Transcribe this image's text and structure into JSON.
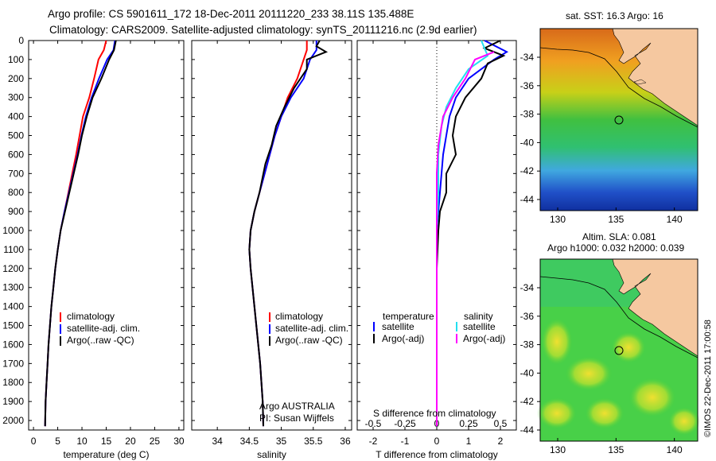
{
  "title_line1": "Argo profile: CS 5901611_172 18-Dec-2011 20111220_233 38.11S 135.488E",
  "title_line2": "Climatology: CARS2009. Satellite-adjusted climatology: synTS_20111216.nc (2.9d earlier)",
  "watermark": "©IMOS 22-Dec-2011 17:00:58",
  "colors": {
    "climatology": "#ff0000",
    "satellite": "#0000ff",
    "argo": "#000000",
    "sal_satellite": "#22e0f0",
    "sal_argo": "#ff00ff",
    "land": "#f5c8a0"
  },
  "depth_ticks": [
    "0",
    "100",
    "200",
    "300",
    "400",
    "500",
    "600",
    "700",
    "800",
    "900",
    "1000",
    "1100",
    "1200",
    "1300",
    "1400",
    "1500",
    "1600",
    "1700",
    "1800",
    "1900",
    "2000"
  ],
  "legends": {
    "climatology": "climatology",
    "satellite_adj": "satellite-adj. clim.",
    "argo_raw": "Argo(..raw -QC)",
    "temperature": "temperature",
    "salinity": "salinity",
    "satellite": "satellite",
    "argo_adj": "Argo(-adj)"
  },
  "annot": {
    "argo": "Argo AUSTRALIA",
    "pi": "PI: Susan Wijffels"
  },
  "map_sst": {
    "title": "sat. SST: 16.3  Argo: 16",
    "yticks": [
      "-34",
      "-36",
      "-38",
      "-40",
      "-42",
      "-44"
    ],
    "xticks": [
      "130",
      "135",
      "140"
    ]
  },
  "map_sla": {
    "title1": "Altim. SLA: 0.081",
    "title2": "Argo h1000: 0.032  h2000: 0.039",
    "yticks": [
      "-34",
      "-36",
      "-38",
      "-40",
      "-42",
      "-44"
    ],
    "xticks": [
      "130",
      "135",
      "140"
    ]
  },
  "chart_data": [
    {
      "type": "line",
      "xlabel": "temperature (deg C)",
      "ylabel": "",
      "xlim": [
        -1,
        31
      ],
      "ylim": [
        2050,
        0
      ],
      "xticks": [
        "0",
        "5",
        "10",
        "15",
        "20",
        "25",
        "30"
      ],
      "series": [
        {
          "name": "climatology",
          "points": [
            [
              15.0,
              0
            ],
            [
              14.5,
              50
            ],
            [
              13.4,
              100
            ],
            [
              12.5,
              200
            ],
            [
              11.5,
              300
            ],
            [
              10.2,
              400
            ],
            [
              9.5,
              500
            ],
            [
              8.8,
              600
            ],
            [
              8.0,
              700
            ],
            [
              7.2,
              800
            ],
            [
              6.4,
              900
            ],
            [
              5.6,
              1000
            ],
            [
              5.0,
              1100
            ],
            [
              4.5,
              1200
            ],
            [
              4.1,
              1300
            ],
            [
              3.7,
              1400
            ],
            [
              3.4,
              1500
            ],
            [
              3.1,
              1600
            ],
            [
              2.9,
              1700
            ],
            [
              2.7,
              1800
            ],
            [
              2.5,
              1900
            ],
            [
              2.4,
              2030
            ]
          ]
        },
        {
          "name": "satellite-adj. clim.",
          "points": [
            [
              16.8,
              0
            ],
            [
              16.5,
              50
            ],
            [
              15.2,
              100
            ],
            [
              13.5,
              200
            ],
            [
              12.0,
              300
            ],
            [
              10.8,
              400
            ],
            [
              9.9,
              500
            ],
            [
              9.1,
              600
            ],
            [
              8.2,
              700
            ],
            [
              7.3,
              800
            ],
            [
              6.4,
              900
            ],
            [
              5.6,
              1000
            ],
            [
              5.0,
              1100
            ],
            [
              4.5,
              1200
            ],
            [
              4.1,
              1300
            ],
            [
              3.7,
              1400
            ],
            [
              3.4,
              1500
            ],
            [
              3.1,
              1600
            ],
            [
              2.9,
              1700
            ],
            [
              2.7,
              1800
            ],
            [
              2.5,
              1900
            ],
            [
              2.4,
              2030
            ]
          ]
        },
        {
          "name": "Argo(..raw -QC)",
          "points": [
            [
              17.0,
              0
            ],
            [
              16.6,
              50
            ],
            [
              15.6,
              100
            ],
            [
              14.0,
              200
            ],
            [
              12.2,
              300
            ],
            [
              11.0,
              400
            ],
            [
              10.0,
              500
            ],
            [
              9.2,
              600
            ],
            [
              8.3,
              700
            ],
            [
              7.4,
              800
            ],
            [
              6.5,
              900
            ],
            [
              5.6,
              1000
            ],
            [
              5.0,
              1100
            ],
            [
              4.5,
              1200
            ],
            [
              4.1,
              1300
            ],
            [
              3.7,
              1400
            ],
            [
              3.4,
              1500
            ],
            [
              3.1,
              1600
            ],
            [
              2.9,
              1700
            ],
            [
              2.7,
              1800
            ],
            [
              2.5,
              1900
            ],
            [
              2.4,
              2030
            ]
          ]
        }
      ]
    },
    {
      "type": "line",
      "xlabel": "salinity",
      "ylabel": "",
      "xlim": [
        33.6,
        36.1
      ],
      "ylim": [
        2050,
        0
      ],
      "xticks": [
        "34",
        "34.5",
        "35",
        "35.5",
        "36"
      ],
      "series": [
        {
          "name": "climatology",
          "points": [
            [
              35.4,
              0
            ],
            [
              35.4,
              50
            ],
            [
              35.35,
              100
            ],
            [
              35.25,
              200
            ],
            [
              35.1,
              300
            ],
            [
              35.0,
              400
            ],
            [
              34.9,
              500
            ],
            [
              34.82,
              600
            ],
            [
              34.74,
              700
            ],
            [
              34.66,
              800
            ],
            [
              34.58,
              900
            ],
            [
              34.52,
              1000
            ],
            [
              34.5,
              1100
            ],
            [
              34.52,
              1200
            ],
            [
              34.55,
              1300
            ],
            [
              34.58,
              1400
            ],
            [
              34.61,
              1500
            ],
            [
              34.64,
              1600
            ],
            [
              34.67,
              1700
            ],
            [
              34.69,
              1800
            ],
            [
              34.71,
              1900
            ],
            [
              34.72,
              2030
            ]
          ]
        },
        {
          "name": "satellite-adj. clim.",
          "points": [
            [
              35.55,
              0
            ],
            [
              35.55,
              50
            ],
            [
              35.45,
              100
            ],
            [
              35.35,
              200
            ],
            [
              35.15,
              300
            ],
            [
              35.0,
              400
            ],
            [
              34.9,
              500
            ],
            [
              34.82,
              600
            ],
            [
              34.74,
              700
            ],
            [
              34.66,
              800
            ],
            [
              34.58,
              900
            ],
            [
              34.52,
              1000
            ],
            [
              34.5,
              1100
            ],
            [
              34.52,
              1200
            ],
            [
              34.55,
              1300
            ],
            [
              34.58,
              1400
            ],
            [
              34.61,
              1500
            ],
            [
              34.64,
              1600
            ],
            [
              34.67,
              1700
            ],
            [
              34.69,
              1800
            ],
            [
              34.71,
              1900
            ],
            [
              34.72,
              2030
            ]
          ]
        },
        {
          "name": "Argo(..raw -QC)",
          "points": [
            [
              35.6,
              0
            ],
            [
              35.55,
              30
            ],
            [
              35.7,
              60
            ],
            [
              35.4,
              100
            ],
            [
              35.4,
              150
            ],
            [
              35.2,
              250
            ],
            [
              35.05,
              350
            ],
            [
              34.92,
              450
            ],
            [
              34.85,
              550
            ],
            [
              34.75,
              650
            ],
            [
              34.66,
              800
            ],
            [
              34.58,
              900
            ],
            [
              34.52,
              1000
            ],
            [
              34.5,
              1100
            ],
            [
              34.52,
              1200
            ],
            [
              34.55,
              1300
            ],
            [
              34.58,
              1400
            ],
            [
              34.61,
              1500
            ],
            [
              34.64,
              1600
            ],
            [
              34.67,
              1700
            ],
            [
              34.69,
              1800
            ],
            [
              34.71,
              1900
            ],
            [
              34.72,
              2030
            ]
          ]
        }
      ]
    },
    {
      "type": "line",
      "xlabel": "T difference from climatology",
      "xlabel_top": "S difference from climatology",
      "xlim": [
        -2.5,
        2.5
      ],
      "ylim": [
        2050,
        0
      ],
      "xticks": [
        "-2",
        "-1",
        "0",
        "1",
        "2"
      ],
      "xticks_top": [
        "-0.5",
        "-0.25",
        "0",
        "0.25",
        "0.5"
      ],
      "series": [
        {
          "name": "temperature satellite",
          "points": [
            [
              1.5,
              0
            ],
            [
              2.2,
              60
            ],
            [
              1.8,
              100
            ],
            [
              1.0,
              200
            ],
            [
              0.6,
              300
            ],
            [
              0.4,
              400
            ],
            [
              0.3,
              500
            ],
            [
              0.2,
              600
            ],
            [
              0.15,
              700
            ],
            [
              0.1,
              800
            ],
            [
              0.05,
              900
            ],
            [
              0.0,
              1000
            ],
            [
              0.0,
              1500
            ],
            [
              0.0,
              2030
            ]
          ]
        },
        {
          "name": "temperature Argo(-adj)",
          "points": [
            [
              2.0,
              0
            ],
            [
              1.5,
              40
            ],
            [
              2.1,
              80
            ],
            [
              1.6,
              120
            ],
            [
              1.4,
              200
            ],
            [
              0.9,
              300
            ],
            [
              0.6,
              400
            ],
            [
              0.5,
              500
            ],
            [
              0.6,
              600
            ],
            [
              0.3,
              700
            ],
            [
              0.3,
              800
            ],
            [
              0.1,
              900
            ],
            [
              0.05,
              1000
            ],
            [
              0.0,
              1200
            ],
            [
              0.0,
              2030
            ]
          ]
        },
        {
          "name": "salinity satellite",
          "points": [
            [
              1.4,
              0
            ],
            [
              1.6,
              80
            ],
            [
              1.0,
              150
            ],
            [
              0.6,
              250
            ],
            [
              0.3,
              350
            ],
            [
              0.15,
              450
            ],
            [
              0.05,
              600
            ],
            [
              0.05,
              800
            ],
            [
              0.0,
              1000
            ],
            [
              0.0,
              1500
            ],
            [
              0.0,
              2030
            ]
          ]
        },
        {
          "name": "salinity Argo(-adj)",
          "points": [
            [
              1.8,
              60
            ],
            [
              1.2,
              100
            ],
            [
              0.9,
              200
            ],
            [
              0.5,
              300
            ],
            [
              0.2,
              400
            ],
            [
              0.05,
              550
            ],
            [
              0.0,
              700
            ],
            [
              0.0,
              2030
            ]
          ]
        }
      ]
    }
  ]
}
